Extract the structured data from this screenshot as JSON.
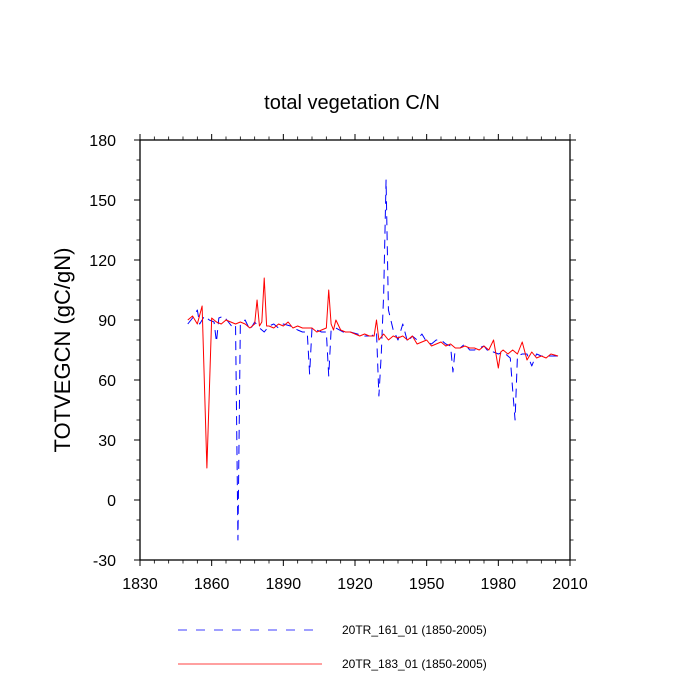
{
  "chart_data": {
    "type": "line",
    "title": "total vegetation C/N",
    "xlabel": "",
    "ylabel": "TOTVEGCN  (gC/gN)",
    "xlim": [
      1830,
      2010
    ],
    "ylim": [
      -30,
      180
    ],
    "xticks": [
      1830,
      1860,
      1890,
      1920,
      1950,
      1980,
      2010
    ],
    "yticks": [
      -30,
      0,
      30,
      60,
      90,
      120,
      150,
      180
    ],
    "xtick_labels": [
      "1830",
      "1860",
      "1890",
      "1920",
      "1950",
      "1980",
      "2010"
    ],
    "ytick_labels": [
      "-30",
      "0",
      "30",
      "60",
      "90",
      "120",
      "150",
      "180"
    ],
    "grid": false,
    "legend_position": "bottom",
    "series": [
      {
        "name": "20TR_161_01 (1850-2005)",
        "color": "#0000ff",
        "style": "dashed",
        "x": [
          1850,
          1852,
          1854,
          1855,
          1857,
          1859,
          1861,
          1862,
          1863,
          1865,
          1867,
          1869,
          1870,
          1871,
          1872,
          1874,
          1876,
          1878,
          1880,
          1882,
          1884,
          1886,
          1888,
          1890,
          1893,
          1896,
          1898,
          1900,
          1901,
          1902,
          1904,
          1906,
          1908,
          1909,
          1910,
          1912,
          1915,
          1918,
          1921,
          1924,
          1927,
          1929,
          1930,
          1931,
          1932,
          1933,
          1934,
          1935,
          1936,
          1938,
          1940,
          1942,
          1944,
          1946,
          1948,
          1950,
          1952,
          1954,
          1956,
          1958,
          1960,
          1961,
          1962,
          1964,
          1966,
          1968,
          1970,
          1972,
          1974,
          1976,
          1978,
          1980,
          1982,
          1984,
          1985,
          1986,
          1987,
          1988,
          1990,
          1992,
          1994,
          1996,
          1998,
          2000,
          2002,
          2005
        ],
        "y": [
          88,
          91,
          95,
          88,
          92,
          90,
          89,
          79,
          91,
          92,
          89,
          86,
          87,
          -20,
          88,
          90,
          85,
          89,
          86,
          84,
          87,
          88,
          86,
          88,
          87,
          85,
          84,
          84,
          63,
          86,
          85,
          84,
          84,
          62,
          85,
          86,
          84,
          84,
          83,
          82,
          82,
          84,
          52,
          73,
          103,
          160,
          95,
          90,
          85,
          80,
          88,
          79,
          82,
          80,
          83,
          79,
          78,
          80,
          80,
          78,
          77,
          64,
          76,
          76,
          78,
          75,
          75,
          76,
          77,
          74,
          74,
          73,
          74,
          72,
          71,
          55,
          40,
          72,
          73,
          73,
          67,
          73,
          72,
          72,
          72,
          72
        ]
      },
      {
        "name": "20TR_183_01 (1850-2005)",
        "color": "#ff0000",
        "style": "solid",
        "x": [
          1850,
          1852,
          1854,
          1856,
          1858,
          1860,
          1862,
          1864,
          1866,
          1868,
          1870,
          1872,
          1874,
          1876,
          1878,
          1879,
          1880,
          1881,
          1882,
          1883,
          1884,
          1886,
          1888,
          1890,
          1892,
          1894,
          1896,
          1898,
          1900,
          1902,
          1904,
          1906,
          1908,
          1909,
          1910,
          1911,
          1912,
          1914,
          1916,
          1918,
          1920,
          1922,
          1924,
          1926,
          1928,
          1929,
          1930,
          1932,
          1934,
          1936,
          1938,
          1940,
          1942,
          1944,
          1946,
          1948,
          1950,
          1952,
          1954,
          1956,
          1958,
          1960,
          1962,
          1964,
          1966,
          1968,
          1970,
          1972,
          1974,
          1976,
          1978,
          1980,
          1981,
          1982,
          1984,
          1986,
          1988,
          1990,
          1992,
          1994,
          1996,
          1998,
          2000,
          2002,
          2005
        ],
        "y": [
          90,
          92,
          88,
          97,
          16,
          91,
          89,
          88,
          90,
          89,
          88,
          89,
          88,
          86,
          88,
          100,
          87,
          89,
          111,
          87,
          87,
          86,
          88,
          87,
          89,
          86,
          87,
          86,
          86,
          86,
          84,
          85,
          86,
          105,
          88,
          85,
          90,
          85,
          84,
          84,
          83,
          82,
          83,
          82,
          82,
          90,
          80,
          83,
          80,
          82,
          81,
          82,
          80,
          82,
          78,
          79,
          80,
          77,
          78,
          79,
          77,
          78,
          76,
          76,
          77,
          76,
          76,
          75,
          77,
          75,
          80,
          66,
          74,
          75,
          73,
          75,
          73,
          79,
          70,
          74,
          71,
          72,
          71,
          73,
          72
        ]
      }
    ]
  }
}
